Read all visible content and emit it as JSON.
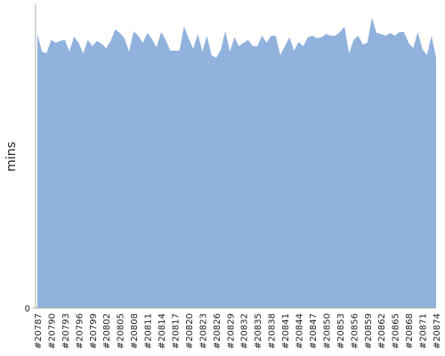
{
  "chart_data": {
    "type": "area",
    "y_label": "mins",
    "color": "#90b2dc",
    "categories": [
      "#20787",
      null,
      null,
      "#20790",
      null,
      null,
      "#20793",
      null,
      null,
      "#20796",
      null,
      null,
      "#20799",
      null,
      null,
      "#20802",
      null,
      null,
      "#20805",
      null,
      null,
      "#20808",
      null,
      null,
      "#20811",
      null,
      null,
      "#20814",
      null,
      null,
      "#20817",
      null,
      null,
      "#20820",
      null,
      null,
      "#20823",
      null,
      null,
      "#20826",
      null,
      null,
      "#20829",
      null,
      null,
      "#20832",
      null,
      null,
      "#20835",
      null,
      null,
      "#20838",
      null,
      null,
      "#20841",
      null,
      null,
      "#20844",
      null,
      null,
      "#20847",
      null,
      null,
      "#20850",
      null,
      null,
      "#20853",
      null,
      null,
      "#20856",
      null,
      null,
      "#20859",
      null,
      null,
      "#20862",
      null,
      null,
      "#20865",
      null,
      null,
      "#20868",
      null,
      null,
      "#20871",
      null,
      null,
      "#20874"
    ],
    "values": [
      90.3,
      84.5,
      83.9,
      88.3,
      87.4,
      88.0,
      88.3,
      84.5,
      89.4,
      87.4,
      83.9,
      88.3,
      86.2,
      88.0,
      87.1,
      85.6,
      88.0,
      91.8,
      90.6,
      88.9,
      84.5,
      91.2,
      89.7,
      87.4,
      90.6,
      88.6,
      85.9,
      90.9,
      88.3,
      84.8,
      84.8,
      84.8,
      92.7,
      88.9,
      85.3,
      90.3,
      84.5,
      89.7,
      83.3,
      82.4,
      85.0,
      91.2,
      84.5,
      89.2,
      86.2,
      87.4,
      88.3,
      86.2,
      86.2,
      89.7,
      87.4,
      89.7,
      89.7,
      83.3,
      86.2,
      89.2,
      84.8,
      87.7,
      86.2,
      89.2,
      89.7,
      88.9,
      89.2,
      90.3,
      89.7,
      89.7,
      90.9,
      92.7,
      83.9,
      88.3,
      89.7,
      86.8,
      87.4,
      95.6,
      90.6,
      90.3,
      89.7,
      90.6,
      89.7,
      90.9,
      90.9,
      87.4,
      85.6,
      90.9,
      85.3,
      83.3,
      89.7,
      82.4
    ],
    "ylim": [
      0,
      100
    ],
    "yticks": [
      0
    ]
  }
}
